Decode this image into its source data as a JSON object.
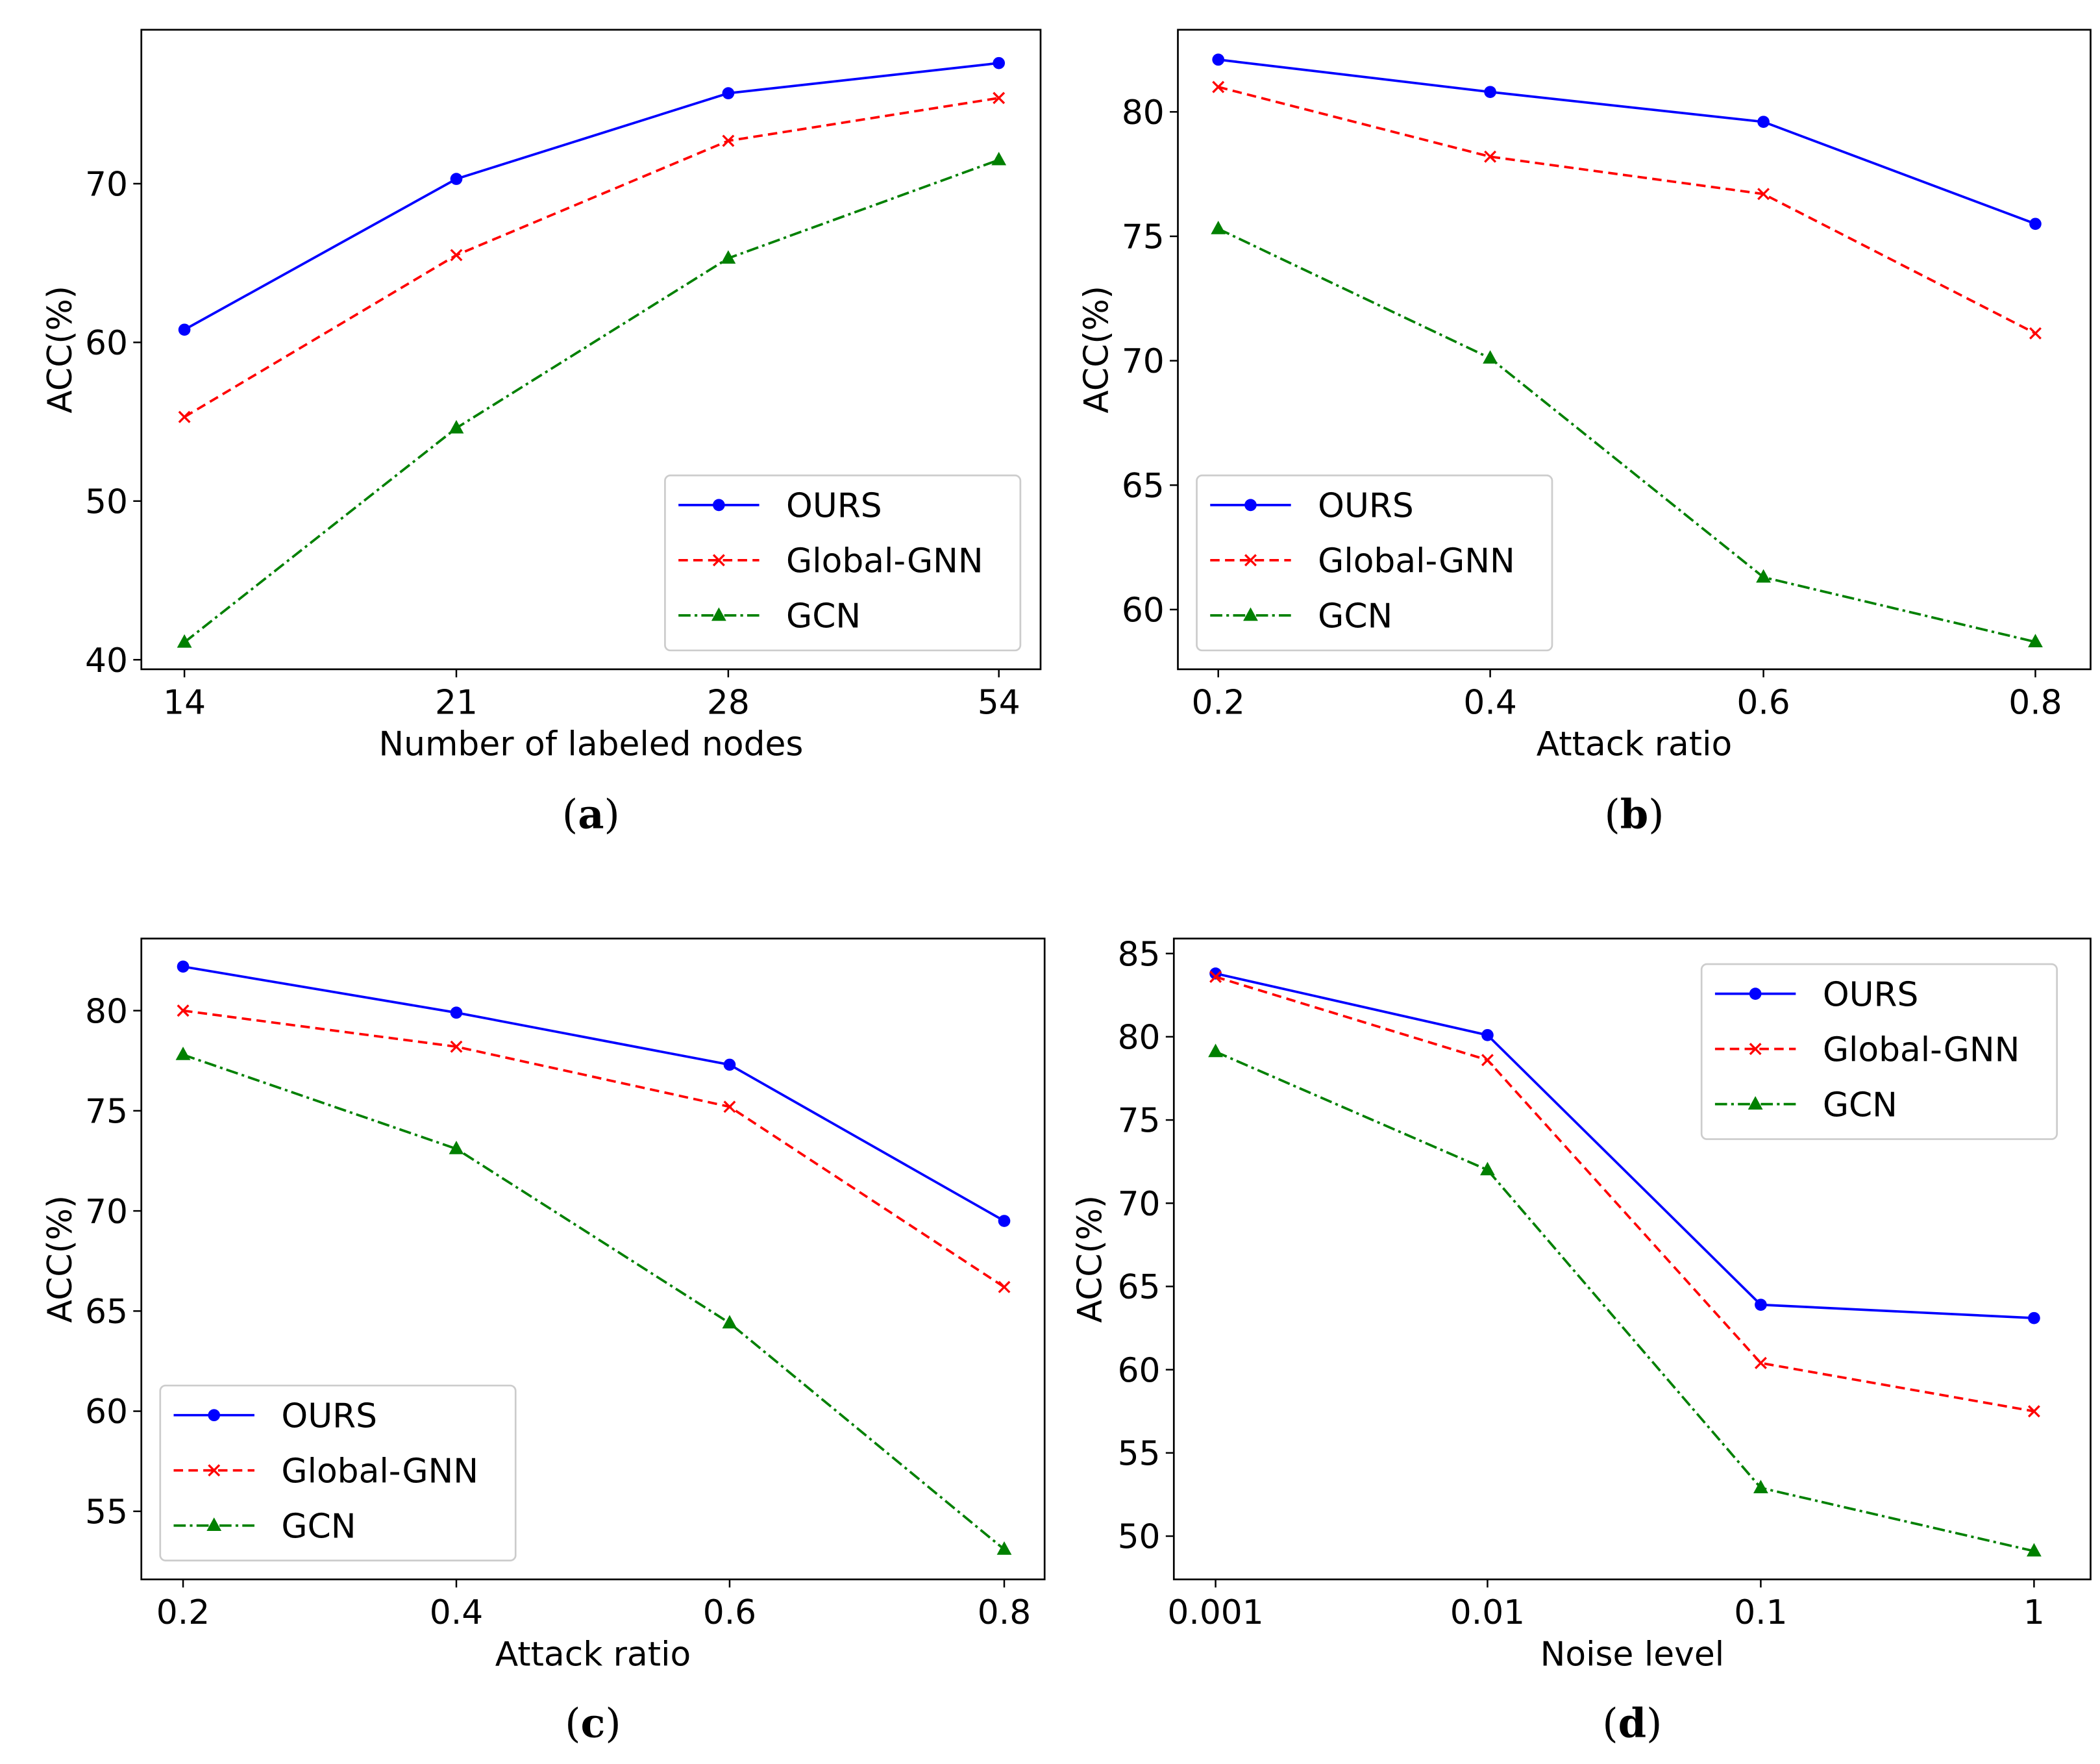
{
  "chart_data": [
    {
      "id": "a",
      "caption": "a",
      "type": "line",
      "xlabel": "Number of labeled nodes",
      "ylabel": "ACC(%)",
      "categories": [
        "14",
        "21",
        "28",
        "54"
      ],
      "ylim": [
        39.4,
        79.7
      ],
      "yticks": [
        40,
        50,
        60,
        70
      ],
      "legend": "lower-right",
      "grid": false,
      "series": [
        {
          "name": "OURS",
          "color": "#0000ff",
          "marker": "circle",
          "dash": "solid",
          "values": [
            60.8,
            70.3,
            75.7,
            77.6
          ]
        },
        {
          "name": "Global-GNN",
          "color": "#ff0000",
          "marker": "x",
          "dash": "dashed",
          "values": [
            55.3,
            65.5,
            72.7,
            75.4
          ]
        },
        {
          "name": "GCN",
          "color": "#008000",
          "marker": "triangle",
          "dash": "dashdot",
          "values": [
            41.1,
            54.6,
            65.3,
            71.5
          ]
        }
      ]
    },
    {
      "id": "b",
      "caption": "b",
      "type": "line",
      "xlabel": "Attack ratio",
      "ylabel": "ACC(%)",
      "categories": [
        "0.2",
        "0.4",
        "0.6",
        "0.8"
      ],
      "ylim": [
        57.6,
        83.3
      ],
      "yticks": [
        60,
        65,
        70,
        75,
        80
      ],
      "legend": "lower-left",
      "grid": false,
      "series": [
        {
          "name": "OURS",
          "color": "#0000ff",
          "marker": "circle",
          "dash": "solid",
          "values": [
            82.1,
            80.8,
            79.6,
            75.5
          ]
        },
        {
          "name": "Global-GNN",
          "color": "#ff0000",
          "marker": "x",
          "dash": "dashed",
          "values": [
            81.0,
            78.2,
            76.7,
            71.1
          ]
        },
        {
          "name": "GCN",
          "color": "#008000",
          "marker": "triangle",
          "dash": "dashdot",
          "values": [
            75.3,
            70.1,
            61.3,
            58.7
          ]
        }
      ]
    },
    {
      "id": "c",
      "caption": "c",
      "type": "line",
      "xlabel": "Attack ratio",
      "ylabel": "ACC(%)",
      "categories": [
        "0.2",
        "0.4",
        "0.6",
        "0.8"
      ],
      "ylim": [
        51.6,
        83.6
      ],
      "yticks": [
        55,
        60,
        65,
        70,
        75,
        80
      ],
      "legend": "lower-left",
      "grid": false,
      "series": [
        {
          "name": "OURS",
          "color": "#0000ff",
          "marker": "circle",
          "dash": "solid",
          "values": [
            82.2,
            79.9,
            77.3,
            69.5
          ]
        },
        {
          "name": "Global-GNN",
          "color": "#ff0000",
          "marker": "x",
          "dash": "dashed",
          "values": [
            80.0,
            78.2,
            75.2,
            66.2
          ]
        },
        {
          "name": "GCN",
          "color": "#008000",
          "marker": "triangle",
          "dash": "dashdot",
          "values": [
            77.8,
            73.1,
            64.4,
            53.1
          ]
        }
      ]
    },
    {
      "id": "d",
      "caption": "d",
      "type": "line",
      "xlabel": "Noise level",
      "ylabel": "ACC(%)",
      "categories": [
        "0.001",
        "0.01",
        "0.1",
        "1"
      ],
      "ylim": [
        47.4,
        85.9
      ],
      "yticks": [
        50,
        55,
        60,
        65,
        70,
        75,
        80,
        85
      ],
      "legend": "upper-right",
      "grid": false,
      "series": [
        {
          "name": "OURS",
          "color": "#0000ff",
          "marker": "circle",
          "dash": "solid",
          "values": [
            83.8,
            80.1,
            63.9,
            63.1
          ]
        },
        {
          "name": "Global-GNN",
          "color": "#ff0000",
          "marker": "x",
          "dash": "dashed",
          "values": [
            83.6,
            78.6,
            60.4,
            57.5
          ]
        },
        {
          "name": "GCN",
          "color": "#008000",
          "marker": "triangle",
          "dash": "dashdot",
          "values": [
            79.1,
            72.0,
            52.9,
            49.1
          ]
        }
      ]
    }
  ]
}
